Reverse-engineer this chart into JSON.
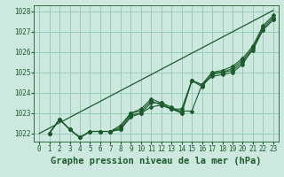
{
  "title": "Graphe pression niveau de la mer (hPa)",
  "bg_color": "#cce8df",
  "grid_color": "#99ccbb",
  "line_color": "#1a5c2a",
  "ylim": [
    1021.6,
    1028.3
  ],
  "yticks": [
    1022,
    1023,
    1024,
    1025,
    1026,
    1027,
    1028
  ],
  "xlim": [
    -0.5,
    23.5
  ],
  "xticks": [
    0,
    1,
    2,
    3,
    4,
    5,
    6,
    7,
    8,
    9,
    10,
    11,
    12,
    13,
    14,
    15,
    16,
    17,
    18,
    19,
    20,
    21,
    22,
    23
  ],
  "series": [
    [
      1022.0,
      1022.7,
      1022.2,
      1021.8,
      1022.1,
      1022.1,
      1022.1,
      1022.2,
      1022.8,
      1023.0,
      1023.3,
      1023.4,
      1023.2,
      1023.0,
      1024.6,
      1024.3,
      1024.9,
      1025.0,
      1025.1,
      1025.5,
      1026.1,
      1027.1,
      1027.6
    ],
    [
      1022.0,
      1022.7,
      1022.2,
      1021.8,
      1022.1,
      1022.1,
      1022.1,
      1022.2,
      1022.9,
      1023.0,
      1023.5,
      1023.5,
      1023.2,
      1023.1,
      1023.1,
      1024.4,
      1024.8,
      1024.9,
      1025.0,
      1025.4,
      1026.2,
      1027.1,
      1027.6
    ],
    [
      1022.0,
      1022.7,
      1022.2,
      1021.8,
      1022.1,
      1022.1,
      1022.1,
      1022.3,
      1023.0,
      1023.1,
      1023.6,
      1023.4,
      1023.2,
      1023.2,
      1024.6,
      1024.4,
      1025.0,
      1025.0,
      1025.2,
      1025.6,
      1026.2,
      1027.2,
      1027.7
    ],
    [
      1022.0,
      1022.7,
      1022.2,
      1021.8,
      1022.1,
      1022.1,
      1022.1,
      1022.4,
      1023.0,
      1023.2,
      1023.7,
      1023.5,
      1023.3,
      1023.0,
      1024.6,
      1024.4,
      1025.0,
      1025.1,
      1025.3,
      1025.7,
      1026.3,
      1027.3,
      1027.8
    ]
  ],
  "trend_line": [
    [
      0,
      23
    ],
    [
      1022.0,
      1028.05
    ]
  ],
  "x_start": 1,
  "title_fontsize": 7.5,
  "tick_fontsize": 5.5
}
